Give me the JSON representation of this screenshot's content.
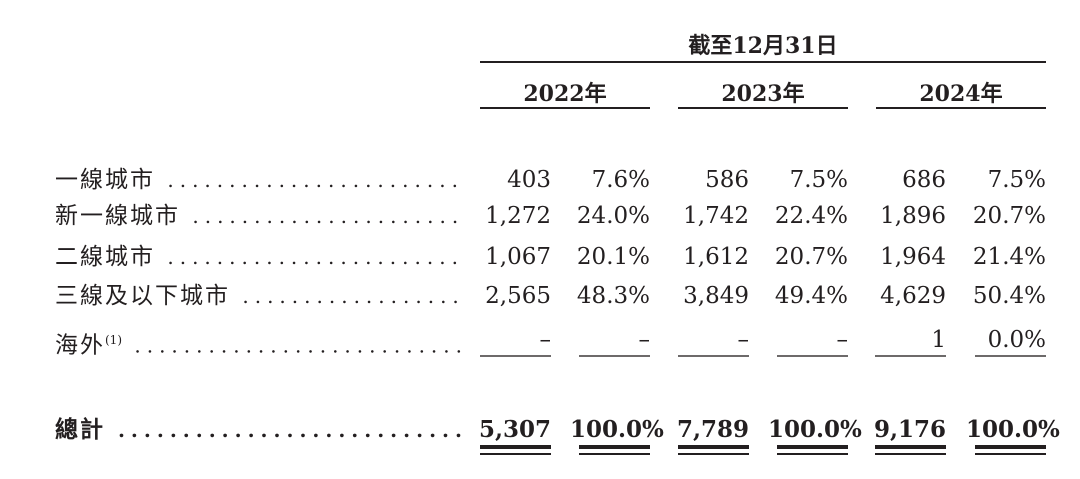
{
  "header": {
    "period": "截至12月31日",
    "years": [
      "2022年",
      "2023年",
      "2024年"
    ]
  },
  "rows": [
    {
      "label": "一線城市",
      "note": "",
      "values": [
        "403",
        "7.6%",
        "586",
        "7.5%",
        "686",
        "7.5%"
      ]
    },
    {
      "label": "新一線城市",
      "note": "",
      "values": [
        "1,272",
        "24.0%",
        "1,742",
        "22.4%",
        "1,896",
        "20.7%"
      ]
    },
    {
      "label": "二線城市",
      "note": "",
      "values": [
        "1,067",
        "20.1%",
        "1,612",
        "20.7%",
        "1,964",
        "21.4%"
      ]
    },
    {
      "label": "三線及以下城市",
      "note": "",
      "values": [
        "2,565",
        "48.3%",
        "3,849",
        "49.4%",
        "4,629",
        "50.4%"
      ]
    },
    {
      "label": "海外",
      "note": "(1)",
      "values": [
        "–",
        "–",
        "–",
        "–",
        "1",
        "0.0%"
      ]
    }
  ],
  "total": {
    "label": "總計",
    "values": [
      "5,307",
      "100.0%",
      "7,789",
      "100.0%",
      "9,176",
      "100.0%"
    ]
  }
}
